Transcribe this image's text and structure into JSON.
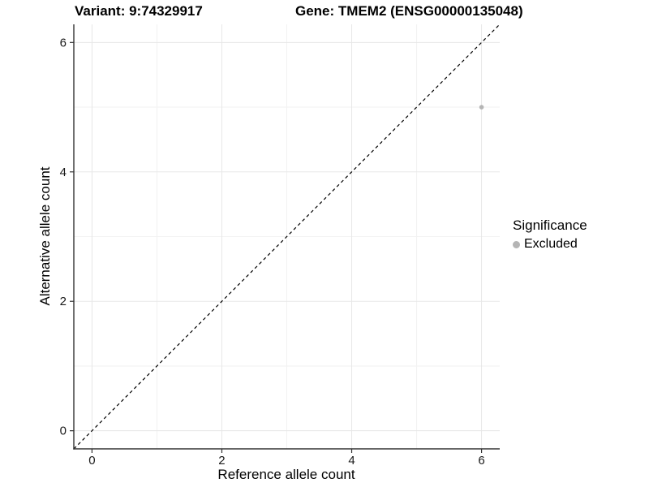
{
  "titles": {
    "left": "Variant: 9:74329917",
    "right": "Gene: TMEM2 (ENSG00000135048)"
  },
  "chart_data": {
    "type": "scatter",
    "xlabel": "Reference allele count",
    "ylabel": "Alternative allele count",
    "xlim": [
      0,
      6
    ],
    "ylim": [
      0,
      6
    ],
    "x_ticks": [
      0,
      2,
      4,
      6
    ],
    "y_ticks": [
      0,
      2,
      4,
      6
    ],
    "x_minor_ticks": [
      1,
      3,
      5
    ],
    "y_minor_ticks": [
      1,
      3,
      5
    ],
    "grid": true,
    "legend_position": "right",
    "reference_line": {
      "type": "identity",
      "linestyle": "dashed",
      "color": "#000000"
    },
    "series": [
      {
        "name": "Excluded",
        "color": "#b5b5b5",
        "points": [
          {
            "x": 6,
            "y": 5
          }
        ]
      }
    ],
    "legend": {
      "title": "Significance",
      "items": [
        {
          "label": "Excluded",
          "color": "#b5b5b5"
        }
      ]
    }
  },
  "colors": {
    "background": "#ffffff",
    "grid_major": "#e7e7e7",
    "grid_minor": "#f2f2f2",
    "axis_line": "#333333",
    "tick_label": "#1a1a1a",
    "point": "#b5b5b5",
    "reference_line": "#000000"
  }
}
